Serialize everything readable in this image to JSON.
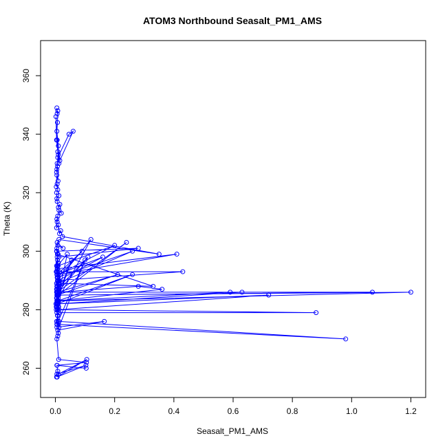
{
  "chart_data": {
    "type": "scatter",
    "title": "ATOM3 Northbound Seasalt_PM1_AMS",
    "xlabel": "Seasalt_PM1_AMS",
    "ylabel": "Theta (K)",
    "xlim": [
      -0.05,
      1.25
    ],
    "ylim": [
      250,
      372
    ],
    "x_ticks": [
      0.0,
      0.2,
      0.4,
      0.6,
      0.8,
      1.0,
      1.2
    ],
    "x_tick_labels": [
      "0.0",
      "0.2",
      "0.4",
      "0.6",
      "0.8",
      "1.0",
      "1.2"
    ],
    "y_ticks": [
      260,
      280,
      300,
      320,
      340,
      360
    ],
    "y_tick_labels": [
      "260",
      "280",
      "300",
      "320",
      "340",
      "360"
    ],
    "grid": false,
    "legend": "none",
    "series_color": "#0000ff",
    "series": [
      {
        "style": "points-and-lines",
        "x": [
          0.005,
          0.006,
          0.008,
          0.007,
          0.005,
          0.01,
          0.012,
          0.008,
          0.004,
          0.002,
          0.006,
          0.015,
          0.06,
          0.046,
          0.008,
          0.005,
          0.006,
          0.01,
          0.004,
          0.007,
          0.009,
          0.005,
          0.003,
          0.006,
          0.008,
          0.012,
          0.005,
          0.004,
          0.006,
          0.01,
          0.015,
          0.02,
          0.012,
          0.008,
          0.006,
          0.005,
          0.004,
          0.01,
          0.014,
          0.018,
          0.024,
          0.35,
          0.012,
          0.008,
          0.026,
          0.006,
          0.004,
          0.005,
          0.009,
          0.012,
          0.28,
          0.005,
          0.007,
          0.009,
          0.006,
          0.004,
          0.003,
          0.007,
          0.41,
          0.005,
          0.006,
          0.008,
          0.01,
          0.009,
          0.2,
          0.01,
          0.008,
          0.012,
          0.022,
          0.33,
          0.007,
          0.006,
          0.26,
          0.008,
          0.012,
          0.005,
          0.006,
          0.24,
          0.01,
          0.006,
          0.12,
          0.008,
          0.004,
          0.005,
          0.009,
          0.011,
          0.007,
          0.004,
          0.055,
          0.006,
          0.008,
          0.01,
          0.003,
          0.005,
          0.009,
          0.007,
          0.004,
          0.005,
          0.1,
          0.012,
          0.006,
          0.008,
          0.011,
          0.04,
          0.007,
          0.005,
          0.006,
          0.16,
          0.009,
          0.004,
          0.007,
          0.006,
          0.11,
          0.008,
          0.01,
          0.005,
          0.007,
          0.005,
          0.014,
          0.43,
          0.007,
          0.006,
          0.09,
          0.008,
          0.013,
          0.009,
          0.005,
          0.01,
          0.007,
          0.21,
          0.006,
          0.004,
          0.008,
          0.26,
          0.007,
          0.011,
          0.006,
          0.008,
          0.005,
          0.006,
          0.36,
          0.28,
          0.012,
          0.007,
          0.01,
          0.005,
          0.59,
          0.63,
          0.006,
          0.003,
          0.012,
          0.009,
          0.006,
          1.2,
          0.008,
          0.004,
          1.07,
          0.006,
          0.008,
          0.003,
          0.007,
          0.72,
          0.007,
          0.009,
          0.002,
          0.005,
          0.011,
          0.007,
          0.88,
          0.012,
          0.008,
          0.008,
          0.006,
          0.98,
          0.012,
          0.005,
          0.165,
          0.008,
          0.01,
          0.008,
          0.005,
          0.011,
          0.105,
          0.006,
          0.104,
          0.005,
          0.008,
          0.01,
          0.106,
          0.006,
          0.103,
          0.005,
          0.004
        ],
        "y": [
          349,
          347,
          348,
          344,
          341,
          336,
          330,
          334,
          338,
          346,
          338,
          331,
          341,
          340,
          332,
          328,
          330,
          333,
          327,
          329,
          324,
          326,
          322,
          323,
          321,
          319,
          318,
          320,
          317,
          315,
          316,
          313,
          314,
          312,
          310,
          311,
          308,
          309,
          306,
          307,
          305,
          299,
          304,
          302,
          301,
          303,
          300,
          301,
          299,
          298,
          301,
          300,
          297,
          296,
          298,
          295,
          293,
          294,
          299,
          292,
          294,
          293,
          296,
          295,
          302,
          292,
          291,
          290,
          289,
          288,
          299,
          291,
          300,
          289,
          288,
          287,
          286,
          303,
          285,
          283,
          304,
          290,
          287,
          286,
          285,
          289,
          288,
          284,
          297,
          283,
          282,
          281,
          280,
          279,
          282,
          278,
          276,
          275,
          297,
          274,
          281,
          283,
          285,
          299,
          295,
          293,
          292,
          298,
          290,
          289,
          288,
          287,
          298,
          286,
          285,
          284,
          283,
          285,
          293,
          293,
          290,
          292,
          300,
          291,
          289,
          290,
          288,
          287,
          286,
          292,
          285,
          284,
          283,
          292,
          282,
          281,
          283,
          285,
          284,
          283,
          287,
          288,
          286,
          285,
          284,
          283,
          286,
          286,
          282,
          281,
          280,
          282,
          285,
          286,
          283,
          286,
          286,
          285,
          283,
          282,
          280,
          285,
          282,
          283,
          282,
          281,
          283,
          280,
          279,
          279,
          278,
          276,
          275,
          270,
          276,
          274,
          276,
          273,
          272,
          271,
          270,
          263,
          262,
          261,
          260,
          261,
          259,
          258,
          263,
          257,
          261,
          258,
          257
        ]
      }
    ]
  }
}
